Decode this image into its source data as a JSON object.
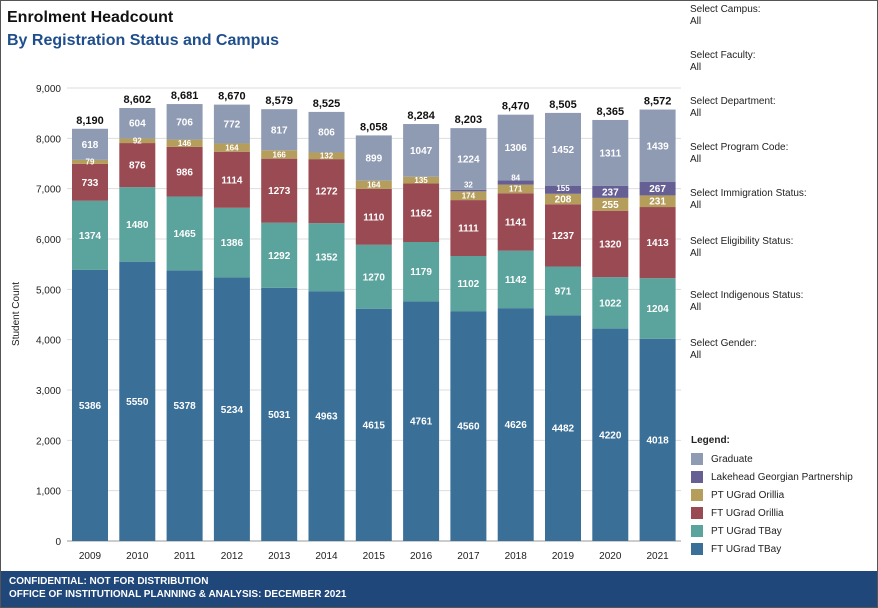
{
  "header": {
    "title": "Enrolment Headcount",
    "subtitle": "By Registration Status and Campus"
  },
  "filters": [
    {
      "label": "Select Campus:",
      "value": "All"
    },
    {
      "label": "Select Faculty:",
      "value": "All"
    },
    {
      "label": "Select Department:",
      "value": "All"
    },
    {
      "label": "Select Program Code:",
      "value": "All"
    },
    {
      "label": "Select Immigration Status:",
      "value": "All"
    },
    {
      "label": "Select Eligibility Status:",
      "value": "All"
    },
    {
      "label": "Select Indigenous Status:",
      "value": "All"
    },
    {
      "label": "Select Gender:",
      "value": "All"
    }
  ],
  "legend_title": "Legend:",
  "footer": {
    "line1": "CONFIDENTIAL: NOT FOR DISTRIBUTION",
    "line2": "OFFICE OF INSTITUTIONAL PLANNING & ANALYSIS: DECEMBER 2021"
  },
  "chart_data": {
    "type": "bar",
    "stacked": true,
    "ylabel": "Student Count",
    "xlabel": "",
    "ylim": [
      0,
      9000
    ],
    "yticks": [
      0,
      1000,
      2000,
      3000,
      4000,
      5000,
      6000,
      7000,
      8000,
      9000
    ],
    "ytick_labels": [
      "0",
      "1,000",
      "2,000",
      "3,000",
      "4,000",
      "5,000",
      "6,000",
      "7,000",
      "8,000",
      "9,000"
    ],
    "categories": [
      "2009",
      "2010",
      "2011",
      "2012",
      "2013",
      "2014",
      "2015",
      "2016",
      "2017",
      "2018",
      "2019",
      "2020",
      "2021"
    ],
    "totals": [
      8190,
      8602,
      8681,
      8670,
      8579,
      8525,
      8058,
      8284,
      8203,
      8470,
      8505,
      8365,
      8572
    ],
    "total_labels": [
      "8,190",
      "8,602",
      "8,681",
      "8,670",
      "8,579",
      "8,525",
      "8,058",
      "8,284",
      "8,203",
      "8,470",
      "8,505",
      "8,365",
      "8,572"
    ],
    "series": [
      {
        "name": "FT UGrad TBay",
        "color": "#3a6f98",
        "values": [
          5386,
          5550,
          5378,
          5234,
          5031,
          4963,
          4615,
          4761,
          4560,
          4626,
          4482,
          4220,
          4018
        ]
      },
      {
        "name": "PT UGrad TBay",
        "color": "#5ba39d",
        "values": [
          1374,
          1480,
          1465,
          1386,
          1292,
          1352,
          1270,
          1179,
          1102,
          1142,
          971,
          1022,
          1204
        ]
      },
      {
        "name": "FT UGrad Orillia",
        "color": "#9a4a52",
        "values": [
          733,
          876,
          986,
          1114,
          1273,
          1272,
          1110,
          1162,
          1111,
          1141,
          1237,
          1320,
          1413
        ]
      },
      {
        "name": "PT UGrad Orillia",
        "color": "#b59d5c",
        "values": [
          79,
          92,
          146,
          164,
          166,
          132,
          164,
          135,
          174,
          171,
          208,
          255,
          231
        ]
      },
      {
        "name": "Lakehead Georgian Partnership",
        "color": "#655f94",
        "values": [
          0,
          0,
          0,
          0,
          0,
          0,
          0,
          0,
          32,
          84,
          155,
          237,
          267
        ]
      },
      {
        "name": "Graduate",
        "color": "#8f9bb3",
        "values": [
          618,
          604,
          706,
          772,
          817,
          806,
          899,
          1047,
          1224,
          1306,
          1452,
          1311,
          1439
        ]
      }
    ],
    "grid": true,
    "legend": "right"
  }
}
